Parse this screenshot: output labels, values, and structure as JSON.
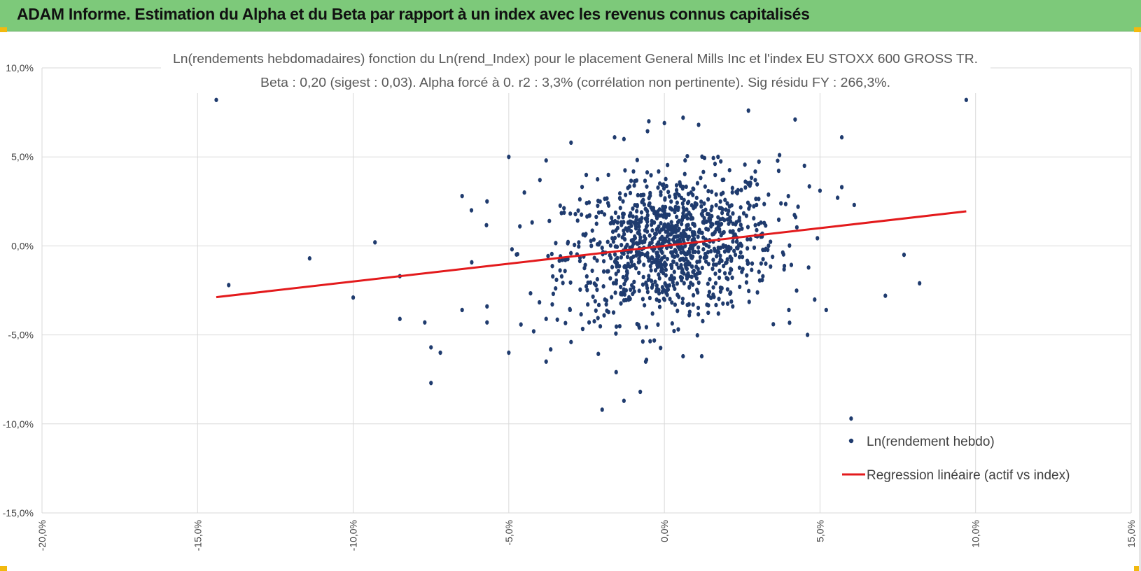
{
  "banner": {
    "title": "ADAM Informe. Estimation du Alpha et du Beta par rapport à un index avec les revenus connus capitalisés",
    "color": "#7dc97a",
    "corner_color": "#f2b90f"
  },
  "chart_data": {
    "type": "scatter",
    "title_line1": "Ln(rendements hebdomadaires) fonction du Ln(rend_Index) pour le placement General Mills Inc et l'index EU STOXX 600 GROSS TR.",
    "title_line2": "Beta : 0,20 (sigest : 0,03).  Alpha forcé à 0. r2 : 3,3% (corrélation non pertinente). Sig résidu FY : 266,3%.",
    "xlabel": "",
    "ylabel": "",
    "xlim": [
      -0.2,
      0.15
    ],
    "ylim": [
      -0.15,
      0.1
    ],
    "x_ticks": [
      -0.2,
      -0.15,
      -0.1,
      -0.05,
      0.0,
      0.05,
      0.1,
      0.15
    ],
    "x_tick_labels": [
      "-20,0%",
      "-15,0%",
      "-10,0%",
      "-5,0%",
      "0,0%",
      "5,0%",
      "10,0%",
      "15,0%"
    ],
    "y_ticks": [
      0.1,
      0.05,
      0.0,
      -0.05,
      -0.1,
      -0.15
    ],
    "y_tick_labels": [
      "10,0%",
      "5,0%",
      "0,0%",
      "-5,0%",
      "-10,0%",
      "-15,0%"
    ],
    "grid": true,
    "legend_position": "bottom-right",
    "series": [
      {
        "name": "Ln(rendement hebdo)",
        "kind": "scatter",
        "color": "#1f3b6e",
        "cloud": {
          "count": 1100,
          "x_mean": 0.002,
          "x_sd": 0.017,
          "y_mean": 0.0,
          "y_sd": 0.02,
          "beta": 0.2
        },
        "outliers": [
          [
            -0.144,
            0.082
          ],
          [
            0.097,
            0.082
          ],
          [
            -0.14,
            -0.022
          ],
          [
            -0.114,
            -0.007
          ],
          [
            -0.1,
            -0.029
          ],
          [
            -0.093,
            0.002
          ],
          [
            -0.085,
            -0.017
          ],
          [
            -0.085,
            -0.041
          ],
          [
            -0.077,
            -0.043
          ],
          [
            -0.075,
            -0.057
          ],
          [
            -0.075,
            -0.077
          ],
          [
            -0.072,
            -0.06
          ],
          [
            -0.065,
            0.028
          ],
          [
            -0.065,
            -0.036
          ],
          [
            -0.062,
            0.02
          ],
          [
            -0.057,
            0.025
          ],
          [
            -0.057,
            -0.034
          ],
          [
            -0.057,
            -0.043
          ],
          [
            -0.05,
            0.05
          ],
          [
            -0.05,
            -0.06
          ],
          [
            -0.045,
            0.03
          ],
          [
            -0.042,
            -0.048
          ],
          [
            -0.04,
            0.037
          ],
          [
            -0.038,
            0.048
          ],
          [
            -0.038,
            -0.065
          ],
          [
            -0.038,
            -0.041
          ],
          [
            -0.03,
            0.058
          ],
          [
            -0.02,
            -0.092
          ],
          [
            -0.013,
            -0.087
          ],
          [
            -0.013,
            0.06
          ],
          [
            -0.016,
            0.061
          ],
          [
            -0.005,
            0.07
          ],
          [
            0.0,
            0.069
          ],
          [
            0.006,
            0.072
          ],
          [
            0.011,
            0.068
          ],
          [
            0.027,
            0.076
          ],
          [
            0.042,
            0.071
          ],
          [
            0.037,
            0.051
          ],
          [
            0.045,
            0.045
          ],
          [
            0.046,
            -0.05
          ],
          [
            0.05,
            0.031
          ],
          [
            0.052,
            -0.036
          ],
          [
            0.057,
            0.061
          ],
          [
            0.057,
            0.033
          ],
          [
            0.06,
            -0.097
          ],
          [
            0.061,
            0.023
          ],
          [
            0.071,
            -0.028
          ],
          [
            0.077,
            -0.005
          ],
          [
            0.082,
            -0.021
          ],
          [
            0.012,
            -0.062
          ],
          [
            0.006,
            -0.062
          ],
          [
            -0.006,
            -0.065
          ],
          [
            0.035,
            -0.044
          ],
          [
            0.04,
            -0.036
          ],
          [
            -0.03,
            -0.054
          ]
        ]
      },
      {
        "name": "Regression linéaire (actif vs index)",
        "kind": "line",
        "color": "#e31a1c",
        "beta": 0.2,
        "x_range": [
          -0.144,
          0.097
        ]
      }
    ]
  }
}
